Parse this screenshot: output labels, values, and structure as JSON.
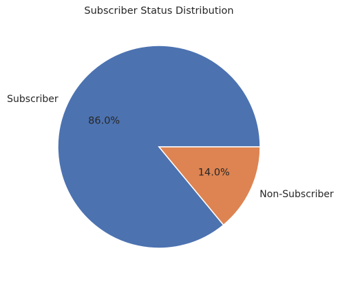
{
  "chart_data": {
    "type": "pie",
    "title": "Subscriber Status Distribution",
    "categories": [
      "Subscriber",
      "Non-Subscriber"
    ],
    "values": [
      86.0,
      14.0
    ],
    "percent_labels": [
      "86.0%",
      "14.0%"
    ],
    "colors": [
      "#4c72b0",
      "#dd8452"
    ],
    "start_angle_deg": 0,
    "direction": "counterclockwise",
    "edge_color": "#ffffff",
    "legend": "none"
  }
}
